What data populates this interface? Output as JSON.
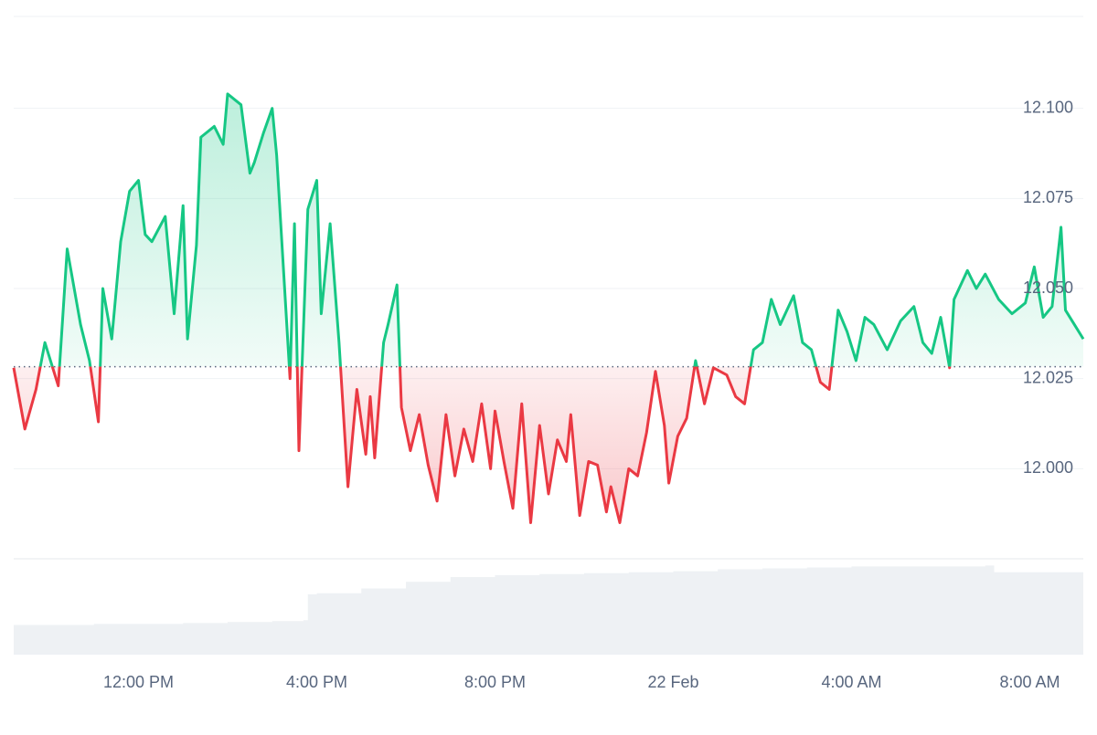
{
  "chart_data": {
    "type": "baseline-line",
    "x": [
      9.2,
      9.45,
      9.7,
      9.9,
      10.2,
      10.4,
      10.7,
      10.9,
      11.1,
      11.2,
      11.4,
      11.6,
      11.8,
      12.0,
      12.15,
      12.3,
      12.6,
      12.8,
      13.0,
      13.1,
      13.3,
      13.4,
      13.7,
      13.9,
      14.0,
      14.3,
      14.5,
      14.6,
      14.8,
      15.0,
      15.1,
      15.4,
      15.5,
      15.6,
      15.8,
      16.0,
      16.1,
      16.3,
      16.5,
      16.7,
      16.9,
      17.1,
      17.2,
      17.3,
      17.5,
      17.6,
      17.8,
      17.9,
      18.1,
      18.3,
      18.5,
      18.7,
      18.9,
      19.1,
      19.3,
      19.5,
      19.7,
      19.9,
      20.0,
      20.2,
      20.4,
      20.6,
      20.8,
      21.0,
      21.2,
      21.4,
      21.6,
      21.7,
      21.9,
      22.1,
      22.3,
      22.5,
      22.6,
      22.8,
      23.0,
      23.2,
      23.4,
      23.6,
      23.8,
      23.9,
      24.1,
      24.3,
      24.5,
      24.7,
      24.9,
      25.2,
      25.4,
      25.6,
      25.8,
      26.0,
      26.2,
      26.4,
      26.7,
      26.9,
      27.1,
      27.3,
      27.5,
      27.7,
      27.9,
      28.1,
      28.3,
      28.5,
      28.8,
      29.1,
      29.4,
      29.6,
      29.8,
      30.0,
      30.2,
      30.3,
      30.6,
      30.8,
      31.0,
      31.3,
      31.6,
      31.9,
      32.1,
      32.3,
      32.5,
      32.7,
      32.8,
      33.0,
      33.2
    ],
    "values": [
      12.028,
      12.011,
      12.022,
      12.035,
      12.023,
      12.061,
      12.04,
      12.03,
      12.013,
      12.05,
      12.036,
      12.063,
      12.077,
      12.08,
      12.065,
      12.063,
      12.07,
      12.043,
      12.073,
      12.036,
      12.062,
      12.092,
      12.095,
      12.09,
      12.104,
      12.101,
      12.082,
      12.085,
      12.093,
      12.1,
      12.087,
      12.025,
      12.068,
      12.005,
      12.072,
      12.08,
      12.043,
      12.068,
      12.035,
      11.995,
      12.022,
      12.004,
      12.02,
      12.003,
      12.035,
      12.04,
      12.051,
      12.017,
      12.005,
      12.015,
      12.001,
      11.991,
      12.015,
      11.998,
      12.011,
      12.002,
      12.018,
      12.0,
      12.016,
      12.002,
      11.989,
      12.018,
      11.985,
      12.012,
      11.993,
      12.008,
      12.002,
      12.015,
      11.987,
      12.002,
      12.001,
      11.988,
      11.995,
      11.985,
      12.0,
      11.998,
      12.01,
      12.027,
      12.012,
      11.996,
      12.009,
      12.014,
      12.03,
      12.018,
      12.028,
      12.026,
      12.02,
      12.018,
      12.033,
      12.035,
      12.047,
      12.04,
      12.048,
      12.035,
      12.033,
      12.024,
      12.022,
      12.044,
      12.038,
      12.03,
      12.042,
      12.04,
      12.033,
      12.041,
      12.045,
      12.035,
      12.032,
      12.042,
      12.028,
      12.047,
      12.055,
      12.05,
      12.054,
      12.047,
      12.043,
      12.046,
      12.056,
      12.042,
      12.045,
      12.067,
      12.044,
      12.04,
      12.036
    ],
    "baseline": 12.0283,
    "up_color": "#16c784",
    "down_color": "#ea3943",
    "xlim": [
      9.2,
      33.2
    ],
    "xticks": [
      {
        "value": 12,
        "label": "12:00 PM"
      },
      {
        "value": 16,
        "label": "4:00 PM"
      },
      {
        "value": 20,
        "label": "8:00 PM"
      },
      {
        "value": 24,
        "label": "22 Feb"
      },
      {
        "value": 28,
        "label": "4:00 AM"
      },
      {
        "value": 32,
        "label": "8:00 AM"
      }
    ],
    "ylim": [
      11.975,
      12.125
    ],
    "yticks": [
      {
        "value": 12,
        "label": "12.000"
      },
      12.025,
      {
        "value": 12.05,
        "label": "12.050"
      },
      12.075,
      {
        "value": 12.1,
        "label": "12.100"
      }
    ],
    "grid": true,
    "volume": {
      "x": [
        9.2,
        10,
        11,
        12,
        13,
        14,
        15,
        15.7,
        15.8,
        16,
        17,
        18,
        19,
        20,
        21,
        22,
        23,
        24,
        25,
        26,
        27,
        28,
        29,
        30,
        31,
        31.2,
        32,
        33.2
      ],
      "values": [
        31,
        31,
        32,
        32,
        33,
        34,
        35,
        36,
        63,
        64,
        69,
        76,
        81,
        83,
        84,
        85,
        86,
        87,
        89,
        90,
        91,
        92,
        92,
        92,
        93,
        86,
        86,
        86
      ],
      "color": "#eef1f4",
      "y2lim": [
        0,
        100
      ]
    }
  }
}
